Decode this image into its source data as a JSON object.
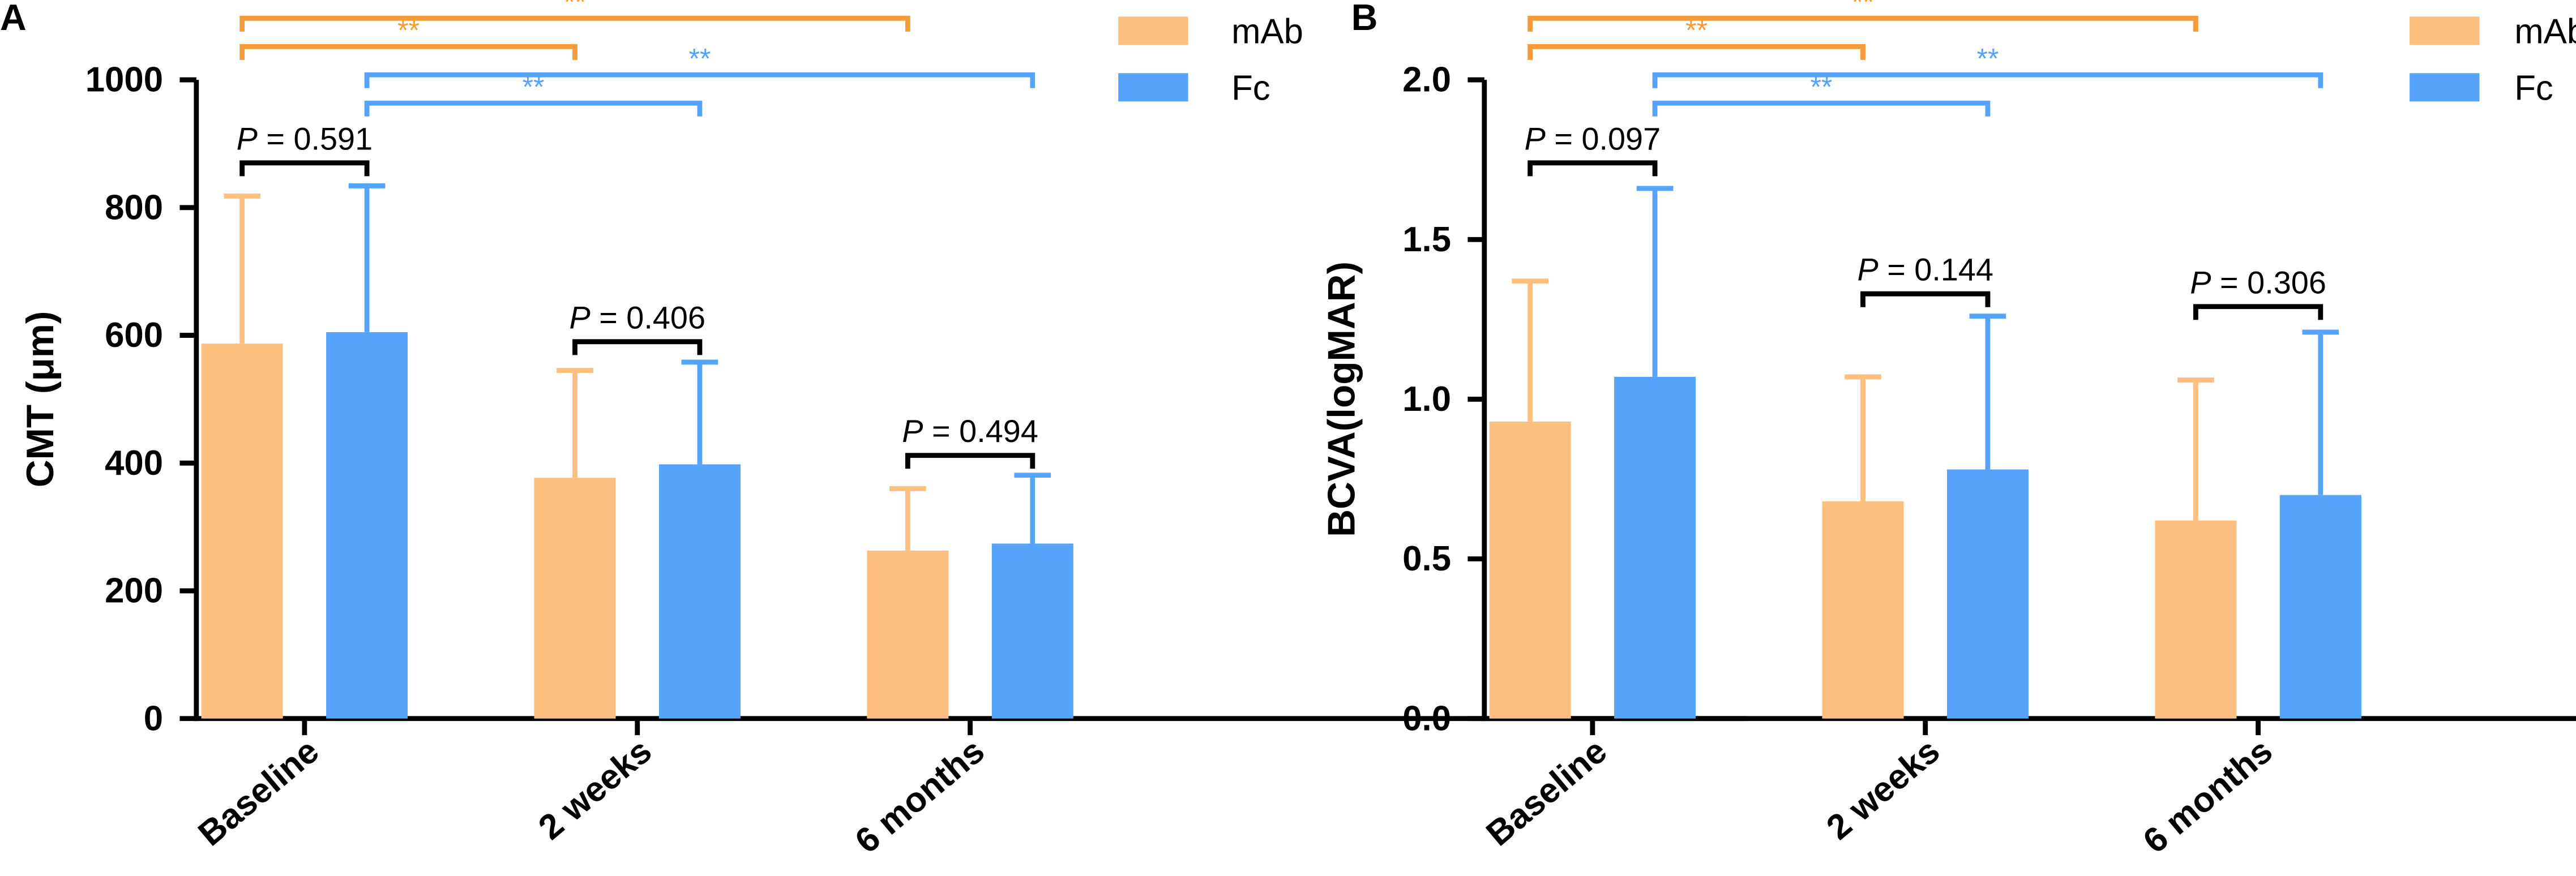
{
  "colors": {
    "mab": "#FFBF80",
    "fc": "#55A4F9",
    "sig_mab": "#F39C3A",
    "sig_fc": "#55A4F9",
    "axis": "#000000"
  },
  "chart_data": [
    {
      "panel": "A",
      "type": "bar",
      "ylabel": "CMT (μm)",
      "ylim": [
        0,
        1000
      ],
      "yticks": [
        0,
        200,
        400,
        600,
        800,
        1000
      ],
      "categories": [
        "Baseline",
        "2 weeks",
        "6 months"
      ],
      "series": [
        {
          "name": "mAb",
          "values": [
            587,
            377,
            263
          ],
          "errors": [
            231,
            168,
            97
          ]
        },
        {
          "name": "Fc",
          "values": [
            605,
            398,
            274
          ],
          "errors": [
            229,
            160,
            107
          ]
        }
      ],
      "comparisons": [
        {
          "series": "mAb",
          "from": "Baseline",
          "to": "6 months",
          "label": "**",
          "level": 1
        },
        {
          "series": "mAb",
          "from": "Baseline",
          "to": "2 weeks",
          "label": "**",
          "level": 0
        },
        {
          "series": "Fc",
          "from": "Baseline",
          "to": "6 months",
          "label": "**",
          "level": 1
        },
        {
          "series": "Fc",
          "from": "Baseline",
          "to": "2 weeks",
          "label": "**",
          "level": 0
        }
      ],
      "pvalues": [
        {
          "category": "Baseline",
          "p": "P",
          "text": " = 0.591",
          "y": 870
        },
        {
          "category": "2 weeks",
          "p": "P",
          "text": " = 0.406",
          "y": 590
        },
        {
          "category": "6 months",
          "p": "P",
          "text": " = 0.494",
          "y": 412
        }
      ]
    },
    {
      "panel": "B",
      "type": "bar",
      "ylabel": "BCVA(logMAR)",
      "ylim": [
        0,
        2.0
      ],
      "yticks": [
        "0.0",
        "0.5",
        "1.0",
        "1.5",
        "2.0"
      ],
      "categories": [
        "Baseline",
        "2 weeks",
        "6 months"
      ],
      "series": [
        {
          "name": "mAb",
          "values": [
            0.93,
            0.68,
            0.62
          ],
          "errors": [
            0.44,
            0.39,
            0.44
          ]
        },
        {
          "name": "Fc",
          "values": [
            1.07,
            0.78,
            0.7
          ],
          "errors": [
            0.59,
            0.48,
            0.51
          ]
        }
      ],
      "comparisons": [
        {
          "series": "mAb",
          "from": "Baseline",
          "to": "6 months",
          "label": "**",
          "level": 1
        },
        {
          "series": "mAb",
          "from": "Baseline",
          "to": "2 weeks",
          "label": "**",
          "level": 0
        },
        {
          "series": "Fc",
          "from": "Baseline",
          "to": "6 months",
          "label": "**",
          "level": 1
        },
        {
          "series": "Fc",
          "from": "Baseline",
          "to": "2 weeks",
          "label": "**",
          "level": 0
        }
      ],
      "pvalues": [
        {
          "category": "Baseline",
          "p": "P",
          "text": " = 0.097",
          "y": 1.74
        },
        {
          "category": "2 weeks",
          "p": "P",
          "text": " = 0.144",
          "y": 1.33
        },
        {
          "category": "6 months",
          "p": "P",
          "text": " = 0.306",
          "y": 1.29
        }
      ]
    }
  ]
}
